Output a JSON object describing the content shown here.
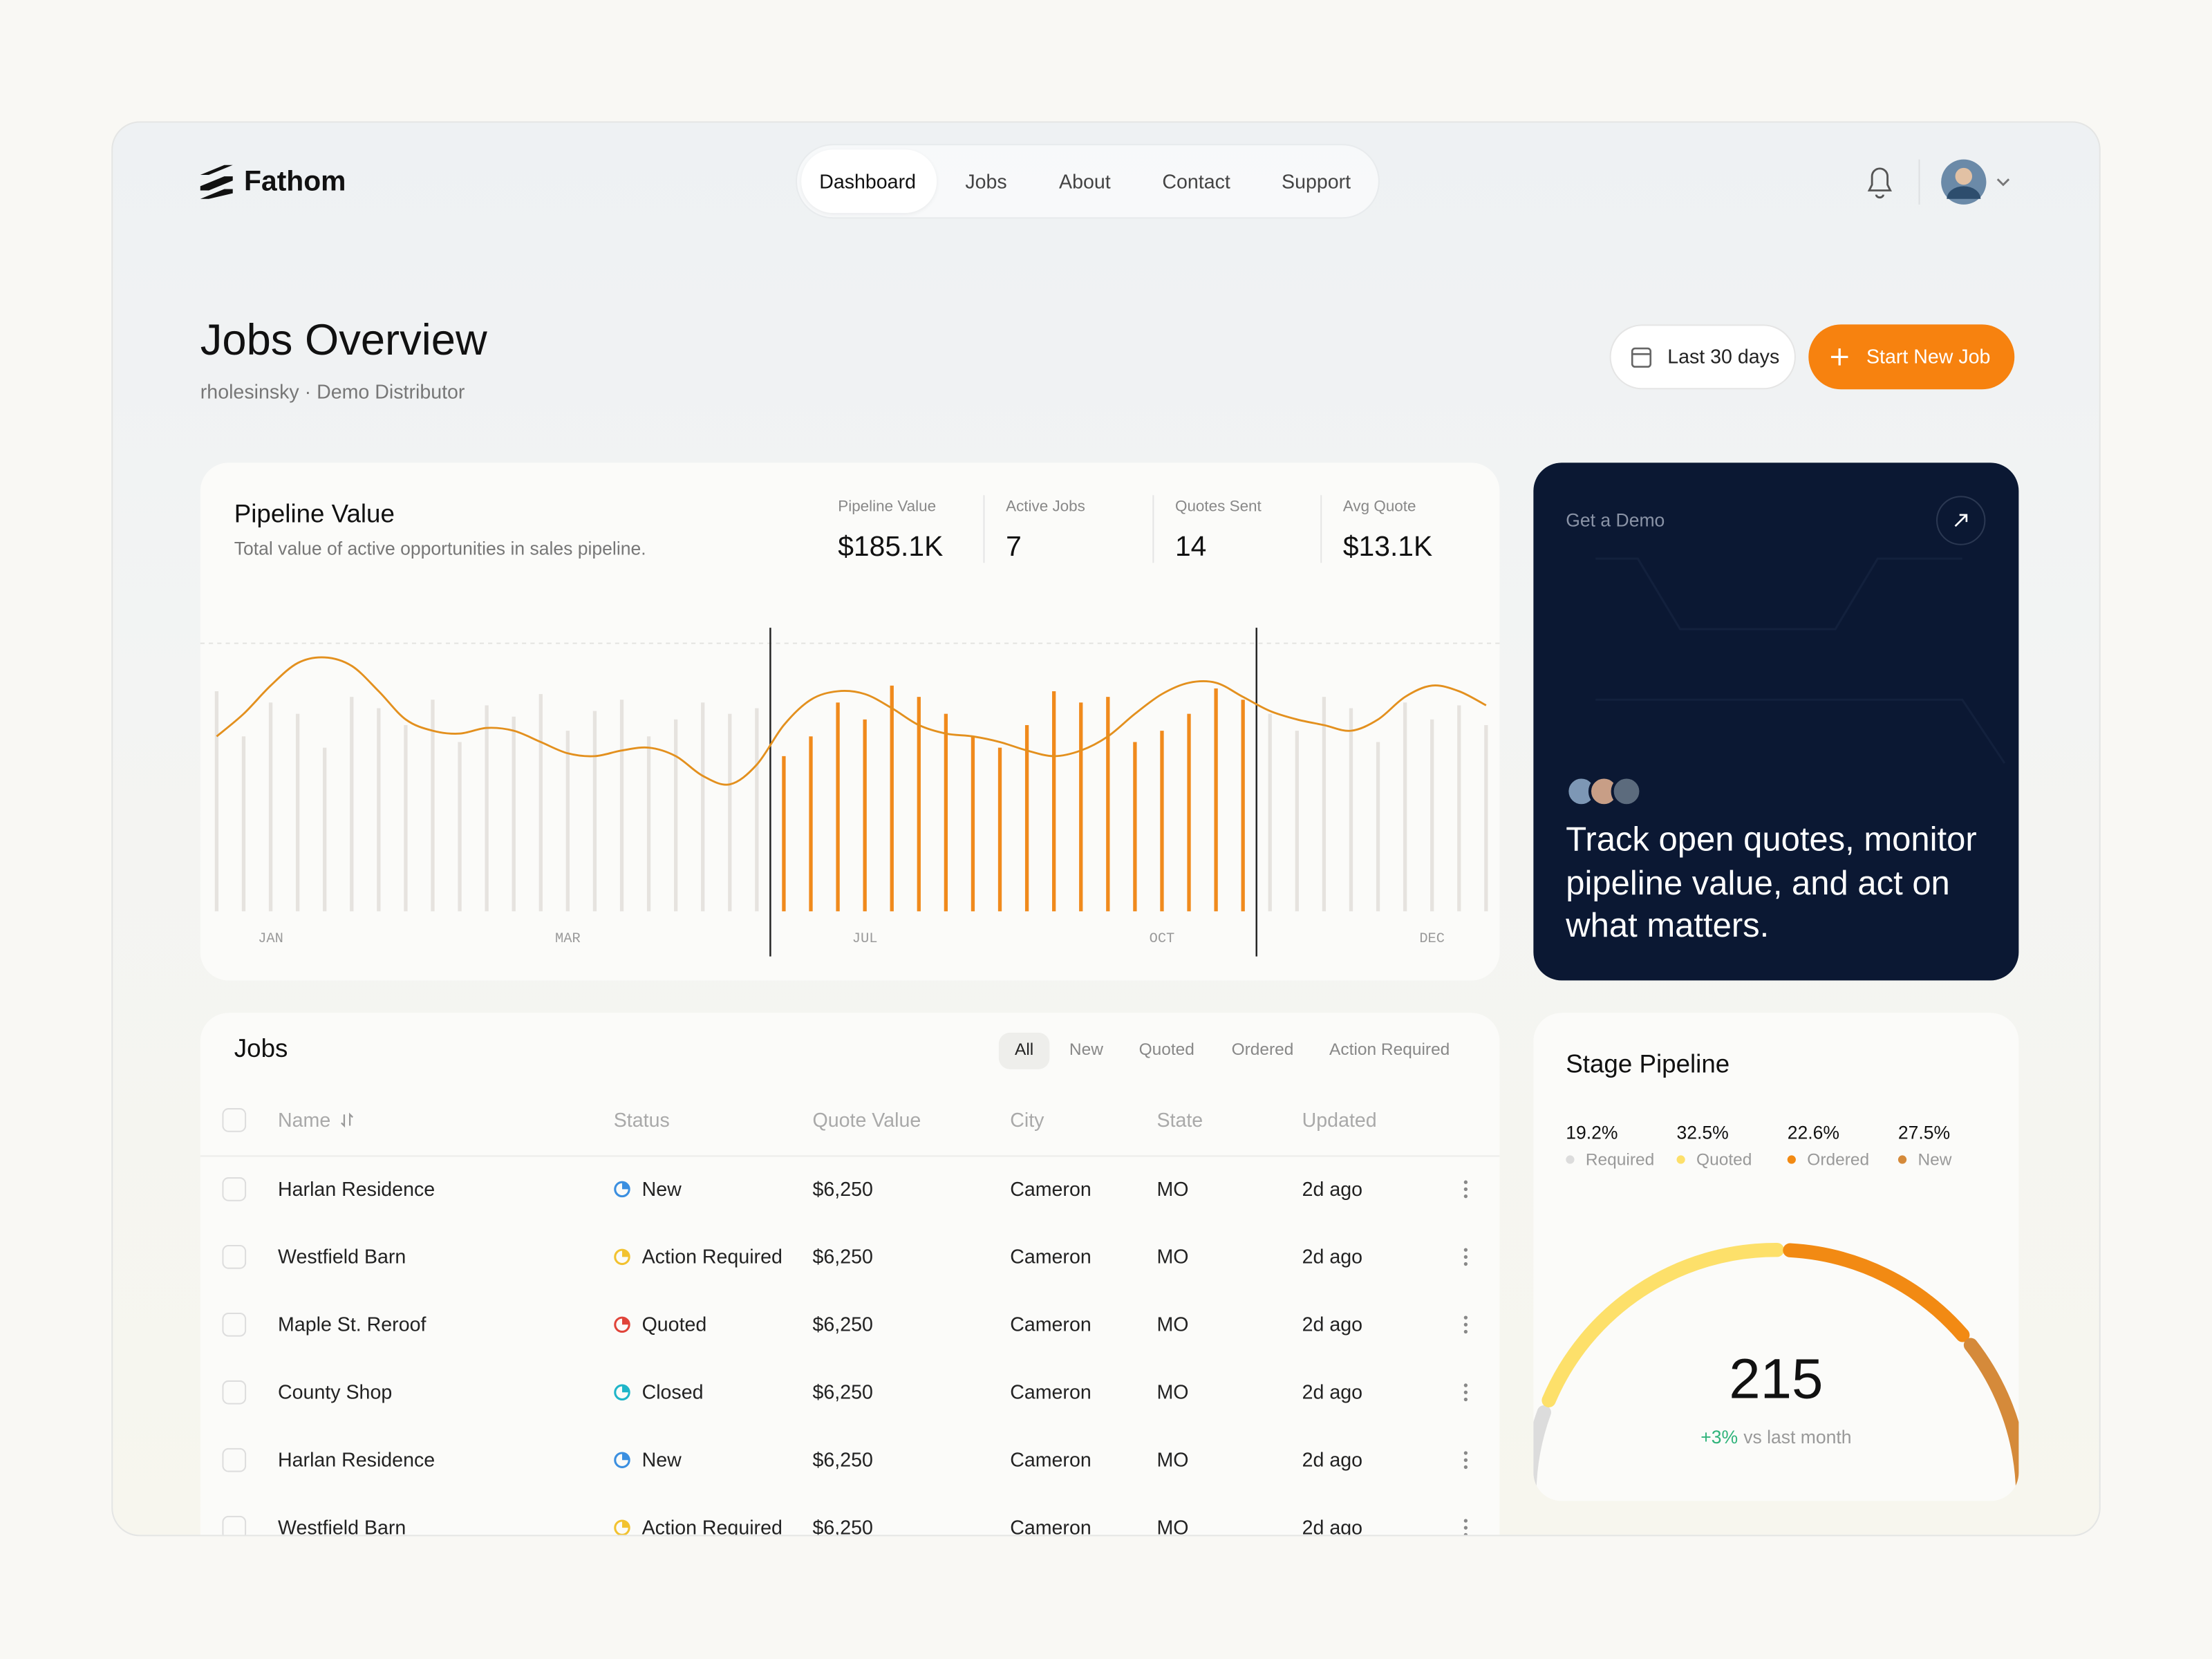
{
  "header": {
    "logo": "Fathom",
    "nav": [
      "Dashboard",
      "Jobs",
      "About",
      "Contact",
      "Support"
    ]
  },
  "page": {
    "title": "Jobs Overview",
    "subtitle": "rholesinsky · Demo Distributor",
    "date_range": "Last 30 days",
    "primary_action": "Start New Job"
  },
  "pipeline": {
    "title": "Pipeline Value",
    "description": "Total value of active opportunities in sales pipeline.",
    "stats": [
      {
        "label": "Pipeline Value",
        "value": "$185.1K"
      },
      {
        "label": "Active Jobs",
        "value": "7"
      },
      {
        "label": "Quotes Sent",
        "value": "14"
      },
      {
        "label": "Avg Quote",
        "value": "$13.1K"
      }
    ]
  },
  "chart_data": [
    {
      "type": "bar",
      "categories": [
        null,
        null,
        "JAN",
        null,
        null,
        null,
        null,
        null,
        null,
        null,
        null,
        null,
        null,
        "MAR",
        null,
        null,
        null,
        null,
        null,
        null,
        null,
        null,
        null,
        null,
        "JUL",
        null,
        null,
        null,
        null,
        null,
        null,
        null,
        null,
        null,
        null,
        "OCT",
        null,
        null,
        null,
        null,
        null,
        null,
        null,
        null,
        null,
        "DEC",
        null,
        null
      ],
      "values": [
        78,
        62,
        74,
        70,
        58,
        76,
        72,
        66,
        75,
        60,
        73,
        69,
        77,
        64,
        71,
        75,
        62,
        68,
        74,
        70,
        72,
        55,
        62,
        74,
        68,
        80,
        76,
        70,
        62,
        58,
        66,
        78,
        74,
        76,
        60,
        64,
        70,
        79,
        75,
        70,
        64,
        76,
        72,
        60,
        74,
        68,
        73,
        66
      ],
      "color": "#e6e3df",
      "highlight": {
        "from": 21,
        "to": 38,
        "color": "#f08a1c"
      },
      "line": {
        "values": [
          62,
          70,
          80,
          88,
          90,
          87,
          78,
          68,
          64,
          63,
          65,
          64,
          60,
          56,
          55,
          57,
          58,
          55,
          48,
          45,
          52,
          66,
          75,
          78,
          77,
          72,
          66,
          63,
          62,
          60,
          57,
          55,
          57,
          62,
          70,
          77,
          81,
          81,
          76,
          71,
          68,
          66,
          64,
          68,
          76,
          80,
          78,
          73
        ],
        "color": "#e3901e"
      },
      "ylim": [
        0,
        100
      ]
    },
    {
      "type": "gauge",
      "title": "Stage Pipeline",
      "series": [
        {
          "name": "Required",
          "color": "#dcdcdc",
          "values": [
            19.2
          ],
          "value_labels": [
            "19.2%"
          ]
        },
        {
          "name": "Quoted",
          "color": "#fde06a",
          "values": [
            32.5
          ],
          "value_labels": [
            "32.5%"
          ]
        },
        {
          "name": "Ordered",
          "color": "#f28a13",
          "values": [
            22.6
          ],
          "value_labels": [
            "22.6%"
          ]
        },
        {
          "name": "New",
          "color": "#d58a3a",
          "values": [
            27.5
          ],
          "value_labels": [
            "27.5%"
          ]
        }
      ],
      "total": 215,
      "change": "+3%",
      "change_note": "vs last month"
    }
  ],
  "demo": {
    "label": "Get a Demo",
    "text": "Track open quotes, monitor pipeline value, and act on what matters."
  },
  "jobs": {
    "title": "Jobs",
    "filters": [
      "All",
      "New",
      "Quoted",
      "Ordered",
      "Action Required"
    ],
    "columns": [
      "Name",
      "Status",
      "Quote Value",
      "City",
      "State",
      "Updated"
    ],
    "status_colors": {
      "New": "#3b8fe0",
      "Action Required": "#f2c230",
      "Quoted": "#e0443a",
      "Closed": "#1fb5c8"
    },
    "rows": [
      [
        "Harlan Residence",
        "New",
        "$6,250",
        "Cameron",
        "MO",
        "2d ago"
      ],
      [
        "Westfield Barn",
        "Action Required",
        "$6,250",
        "Cameron",
        "MO",
        "2d ago"
      ],
      [
        "Maple St. Reroof",
        "Quoted",
        "$6,250",
        "Cameron",
        "MO",
        "2d ago"
      ],
      [
        "County Shop",
        "Closed",
        "$6,250",
        "Cameron",
        "MO",
        "2d ago"
      ],
      [
        "Harlan Residence",
        "New",
        "$6,250",
        "Cameron",
        "MO",
        "2d ago"
      ],
      [
        "Westfield Barn",
        "Action Required",
        "$6,250",
        "Cameron",
        "MO",
        "2d ago"
      ]
    ]
  }
}
